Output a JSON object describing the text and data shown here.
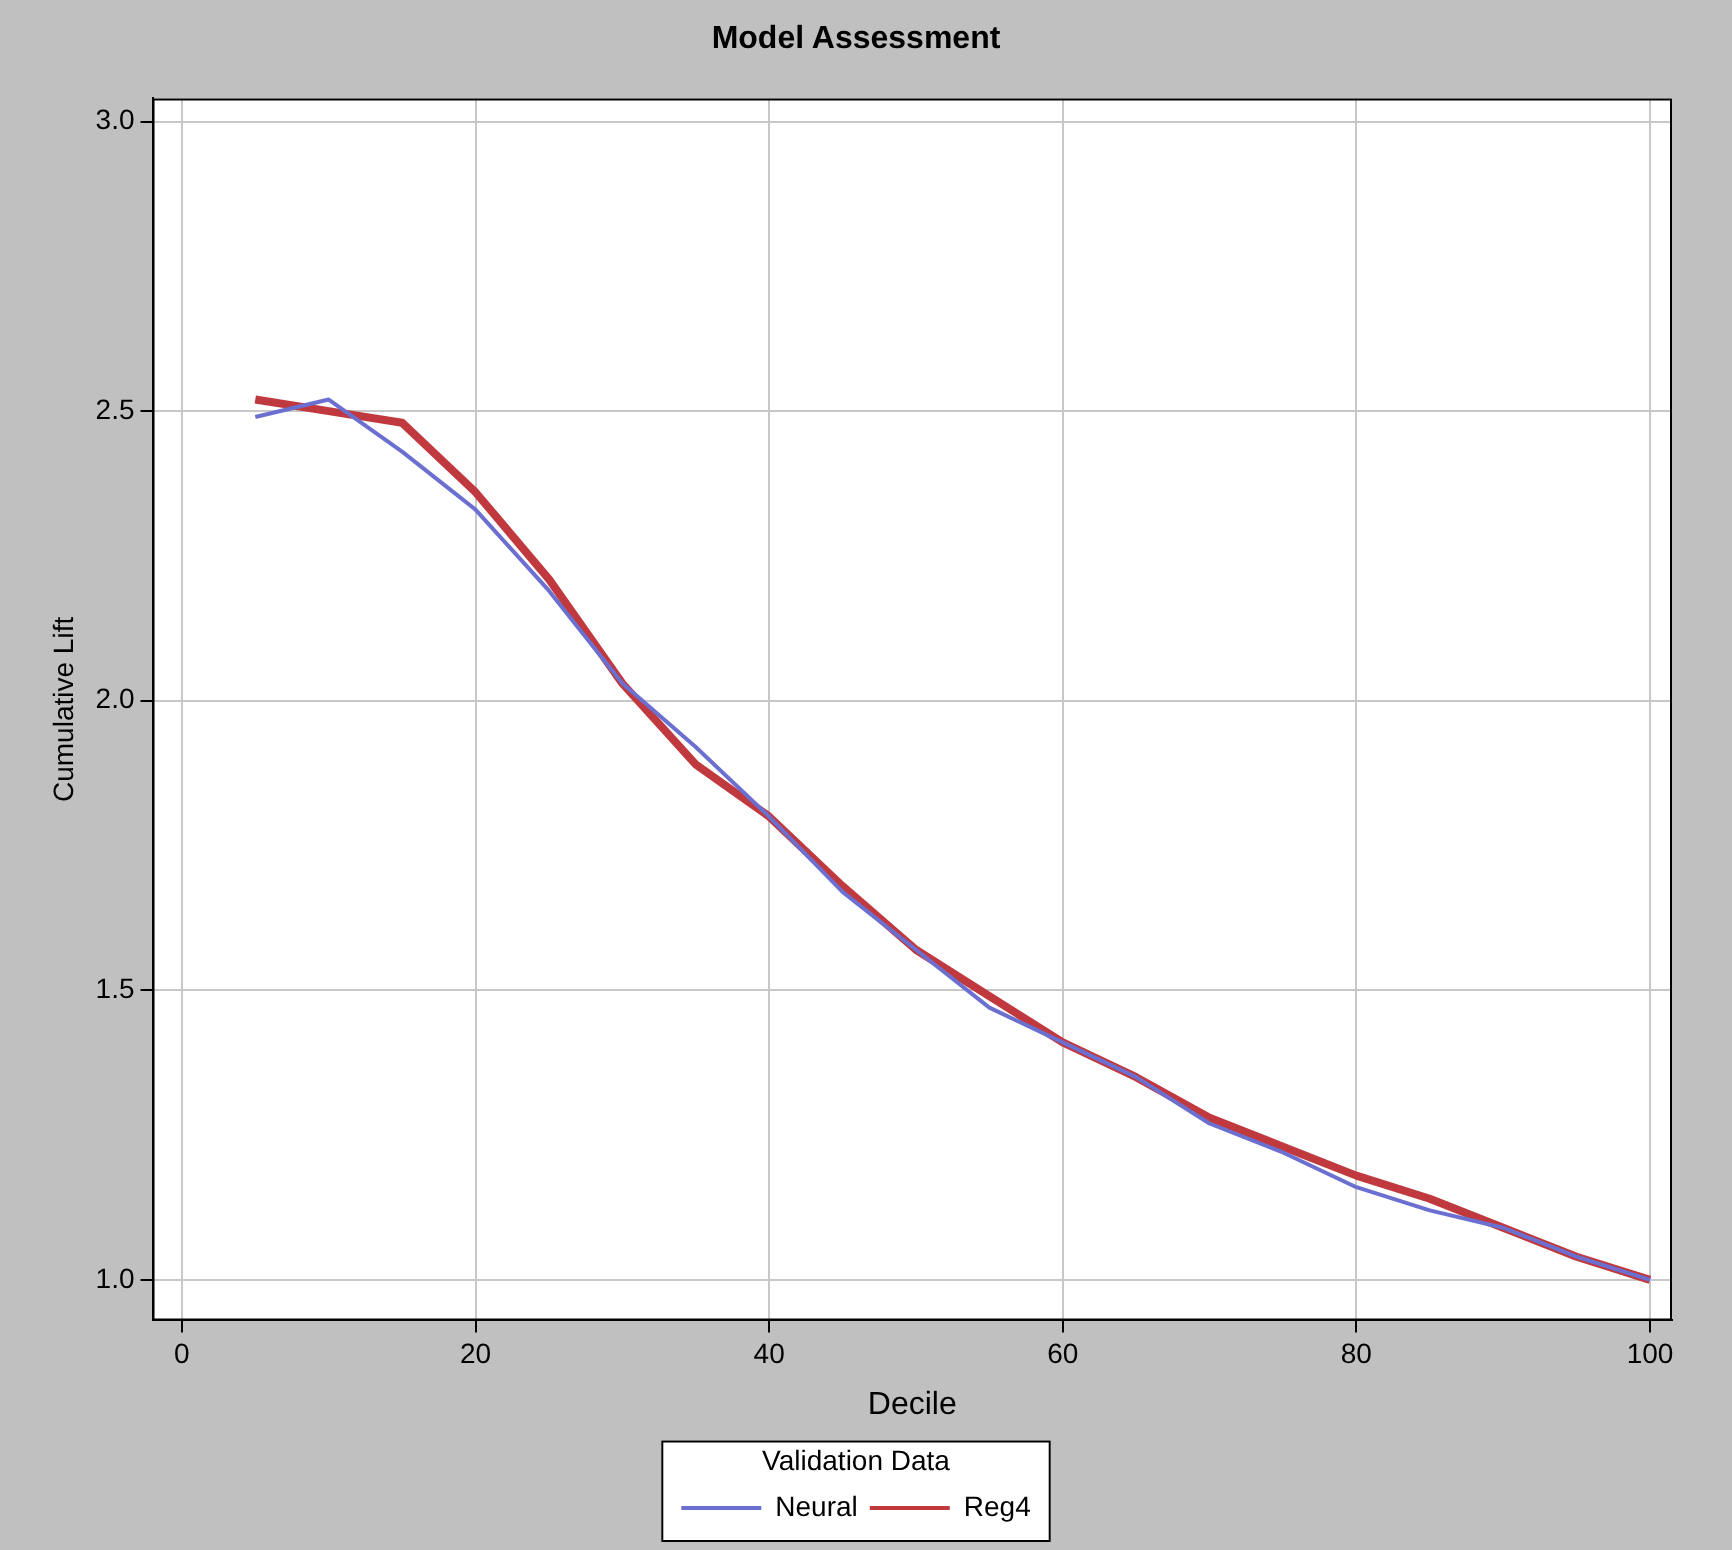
{
  "chart_data": {
    "type": "line",
    "title": "Model Assessment",
    "xlabel": "Decile",
    "ylabel": "Cumulative Lift",
    "legend_title": "Validation Data",
    "legend": "bottom",
    "grid": true,
    "marker": "none",
    "line_style": "solid",
    "x": [
      5,
      10,
      15,
      20,
      25,
      30,
      35,
      40,
      45,
      50,
      55,
      60,
      65,
      70,
      75,
      80,
      85,
      90,
      95,
      100
    ],
    "xlim": [
      -2,
      101.5
    ],
    "xticks": [
      0,
      20,
      40,
      60,
      80,
      100
    ],
    "ylim": [
      0.93,
      3.04
    ],
    "yticks": [
      {
        "value": 1,
        "label": "1.0"
      },
      {
        "value": 1.5,
        "label": "1.5"
      },
      {
        "value": 2,
        "label": "2.0"
      },
      {
        "value": 2.5,
        "label": "2.5"
      },
      {
        "value": 3,
        "label": "3.0"
      }
    ],
    "series": [
      {
        "name": "Neural",
        "color": "#6b6fd0",
        "values": [
          2.49,
          2.52,
          2.43,
          2.33,
          2.19,
          2.03,
          1.92,
          1.8,
          1.67,
          1.57,
          1.47,
          1.41,
          1.35,
          1.27,
          1.22,
          1.16,
          1.12,
          1.09,
          1.04,
          1.0
        ]
      },
      {
        "name": "Reg4",
        "color": "#c0393f",
        "values": [
          2.52,
          2.5,
          2.48,
          2.36,
          2.21,
          2.03,
          1.89,
          1.8,
          1.68,
          1.57,
          1.49,
          1.41,
          1.35,
          1.28,
          1.23,
          1.18,
          1.14,
          1.09,
          1.04,
          1.0
        ]
      }
    ]
  }
}
